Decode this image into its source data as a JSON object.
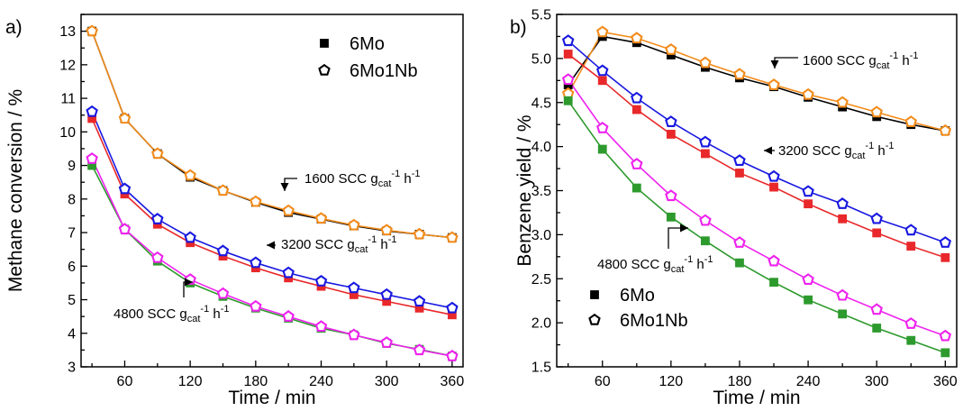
{
  "chart_data": [
    {
      "type": "line",
      "panel_label": "a)",
      "xlabel": "Time / min",
      "ylabel": "Methane conversion / %",
      "xlim": [
        20,
        370
      ],
      "ylim": [
        3,
        13.5
      ],
      "xticks": [
        60,
        120,
        180,
        240,
        300,
        360
      ],
      "yticks": [
        3,
        4,
        5,
        6,
        7,
        8,
        9,
        10,
        11,
        12,
        13
      ],
      "grid": false,
      "legend": {
        "placement": "top-right",
        "entries": [
          {
            "label": "6Mo",
            "marker": "square-filled"
          },
          {
            "label": "6Mo1Nb",
            "marker": "pentagon-open"
          }
        ]
      },
      "x": [
        30,
        60,
        90,
        120,
        150,
        180,
        210,
        240,
        270,
        300,
        330,
        360
      ],
      "series": [
        {
          "flow": "1600",
          "catalyst": "6Mo",
          "marker": "square-filled",
          "color": "#000000",
          "values": [
            13.0,
            10.4,
            9.35,
            8.65,
            8.25,
            7.9,
            7.6,
            7.4,
            7.2,
            7.05,
            6.95,
            6.85
          ]
        },
        {
          "flow": "1600",
          "catalyst": "6Mo1Nb",
          "marker": "pentagon-open",
          "color": "#f28c1c",
          "values": [
            13.0,
            10.4,
            9.35,
            8.7,
            8.25,
            7.92,
            7.65,
            7.42,
            7.22,
            7.07,
            6.95,
            6.85
          ]
        },
        {
          "flow": "3200",
          "catalyst": "6Mo",
          "marker": "square-filled",
          "color": "#e8282a",
          "values": [
            10.4,
            8.15,
            7.25,
            6.7,
            6.3,
            5.95,
            5.65,
            5.4,
            5.15,
            4.95,
            4.75,
            4.55
          ]
        },
        {
          "flow": "3200",
          "catalyst": "6Mo1Nb",
          "marker": "pentagon-open",
          "color": "#1818e0",
          "values": [
            10.6,
            8.3,
            7.4,
            6.85,
            6.45,
            6.1,
            5.8,
            5.55,
            5.35,
            5.15,
            4.95,
            4.75
          ]
        },
        {
          "flow": "4800",
          "catalyst": "6Mo",
          "marker": "square-filled",
          "color": "#2d9a2d",
          "values": [
            9.0,
            7.1,
            6.15,
            5.5,
            5.1,
            4.75,
            4.45,
            4.15,
            3.95,
            3.7,
            3.52,
            3.32
          ]
        },
        {
          "flow": "4800",
          "catalyst": "6Mo1Nb",
          "marker": "pentagon-open",
          "color": "#ee22ee",
          "values": [
            9.2,
            7.1,
            6.25,
            5.6,
            5.18,
            4.8,
            4.5,
            4.2,
            3.95,
            3.72,
            3.5,
            3.32
          ]
        }
      ],
      "annotations": [
        {
          "text": "1600 SCC g",
          "sub": "cat",
          "sup1": "-1",
          "mid": " h",
          "sup2": "-1"
        },
        {
          "text": "3200 SCC g",
          "sub": "cat",
          "sup1": "-1",
          "mid": " h",
          "sup2": "-1"
        },
        {
          "text": "4800 SCC g",
          "sub": "cat",
          "sup1": "-1",
          "mid": " h",
          "sup2": "-1"
        }
      ]
    },
    {
      "type": "line",
      "panel_label": "b)",
      "xlabel": "Time / min",
      "ylabel": "Benzene yield / %",
      "xlim": [
        20,
        370
      ],
      "ylim": [
        1.5,
        5.5
      ],
      "xticks": [
        60,
        120,
        180,
        240,
        300,
        360
      ],
      "yticks": [
        1.5,
        2.0,
        2.5,
        3.0,
        3.5,
        4.0,
        4.5,
        5.0,
        5.5
      ],
      "grid": false,
      "legend": {
        "placement": "bottom-left",
        "entries": [
          {
            "label": "6Mo",
            "marker": "square-filled"
          },
          {
            "label": "6Mo1Nb",
            "marker": "pentagon-open"
          }
        ]
      },
      "x": [
        30,
        60,
        90,
        120,
        150,
        180,
        210,
        240,
        270,
        300,
        330,
        360
      ],
      "series": [
        {
          "flow": "1600",
          "catalyst": "6Mo",
          "marker": "square-filled",
          "color": "#000000",
          "values": [
            4.7,
            5.25,
            5.18,
            5.04,
            4.9,
            4.78,
            4.68,
            4.56,
            4.45,
            4.34,
            4.25,
            4.18
          ]
        },
        {
          "flow": "1600",
          "catalyst": "6Mo1Nb",
          "marker": "pentagon-open",
          "color": "#f28c1c",
          "values": [
            4.6,
            5.3,
            5.23,
            5.1,
            4.95,
            4.82,
            4.7,
            4.59,
            4.5,
            4.39,
            4.28,
            4.18
          ]
        },
        {
          "flow": "3200",
          "catalyst": "6Mo",
          "marker": "square-filled",
          "color": "#e8282a",
          "values": [
            5.05,
            4.75,
            4.42,
            4.14,
            3.92,
            3.7,
            3.54,
            3.35,
            3.18,
            3.02,
            2.87,
            2.74
          ]
        },
        {
          "flow": "3200",
          "catalyst": "6Mo1Nb",
          "marker": "pentagon-open",
          "color": "#1818e0",
          "values": [
            5.2,
            4.86,
            4.55,
            4.28,
            4.05,
            3.84,
            3.66,
            3.49,
            3.35,
            3.18,
            3.05,
            2.91
          ]
        },
        {
          "flow": "4800",
          "catalyst": "6Mo",
          "marker": "square-filled",
          "color": "#2d9a2d",
          "values": [
            4.52,
            3.97,
            3.53,
            3.2,
            2.93,
            2.68,
            2.46,
            2.26,
            2.1,
            1.94,
            1.8,
            1.66
          ]
        },
        {
          "flow": "4800",
          "catalyst": "6Mo1Nb",
          "marker": "pentagon-open",
          "color": "#ee22ee",
          "values": [
            4.76,
            4.21,
            3.8,
            3.44,
            3.16,
            2.91,
            2.7,
            2.49,
            2.31,
            2.15,
            1.99,
            1.85
          ]
        }
      ],
      "annotations": [
        {
          "text": "1600 SCC g",
          "sub": "cat",
          "sup1": "-1",
          "mid": " h",
          "sup2": "-1"
        },
        {
          "text": "3200 SCC g",
          "sub": "cat",
          "sup1": "-1",
          "mid": " h",
          "sup2": "-1"
        },
        {
          "text": "4800 SCC g",
          "sub": "cat",
          "sup1": "-1",
          "mid": " h",
          "sup2": "-1"
        }
      ]
    }
  ]
}
